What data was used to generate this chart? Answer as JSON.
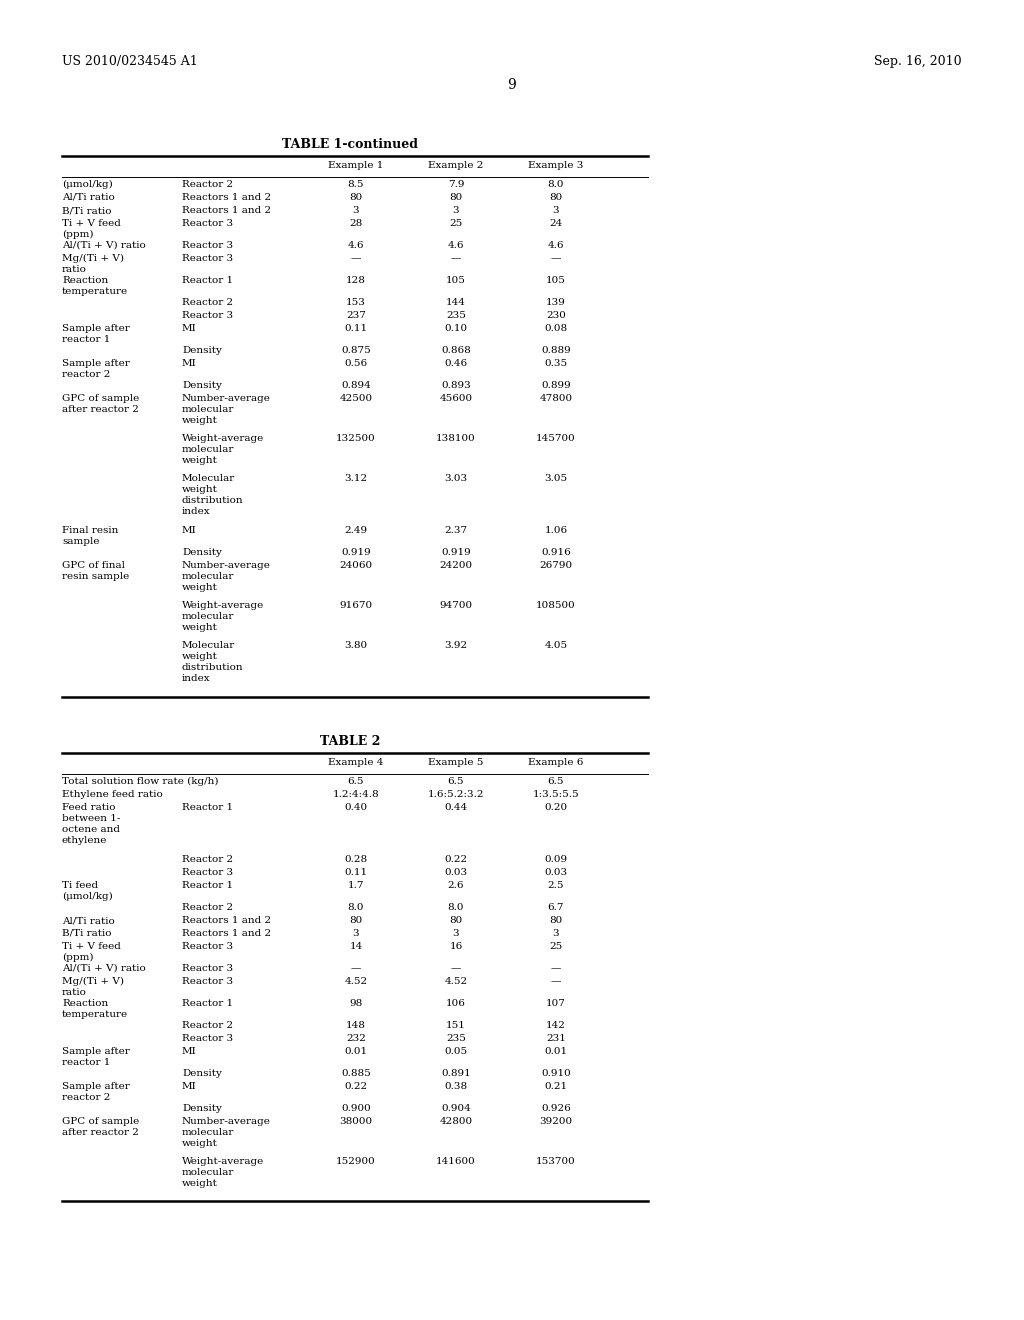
{
  "header_left": "US 2010/0234545 A1",
  "header_right": "Sep. 16, 2010",
  "page_number": "9",
  "table1_title": "TABLE 1-continued",
  "table1_rows": [
    [
      "(μmol/kg)",
      "Reactor 2",
      "8.5",
      "7.9",
      "8.0"
    ],
    [
      "Al/Ti ratio",
      "Reactors 1 and 2",
      "80",
      "80",
      "80"
    ],
    [
      "B/Ti ratio",
      "Reactors 1 and 2",
      "3",
      "3",
      "3"
    ],
    [
      "Ti + V feed\n(ppm)",
      "Reactor 3",
      "28",
      "25",
      "24"
    ],
    [
      "Al/(Ti + V) ratio",
      "Reactor 3",
      "4.6",
      "4.6",
      "4.6"
    ],
    [
      "Mg/(Ti + V)\nratio",
      "Reactor 3",
      "—",
      "—",
      "—"
    ],
    [
      "Reaction\ntemperature",
      "Reactor 1",
      "128",
      "105",
      "105"
    ],
    [
      "",
      "Reactor 2",
      "153",
      "144",
      "139"
    ],
    [
      "",
      "Reactor 3",
      "237",
      "235",
      "230"
    ],
    [
      "Sample after\nreactor 1",
      "MI",
      "0.11",
      "0.10",
      "0.08"
    ],
    [
      "",
      "Density",
      "0.875",
      "0.868",
      "0.889"
    ],
    [
      "Sample after\nreactor 2",
      "MI",
      "0.56",
      "0.46",
      "0.35"
    ],
    [
      "",
      "Density",
      "0.894",
      "0.893",
      "0.899"
    ],
    [
      "GPC of sample\nafter reactor 2",
      "Number-average\nmolecular\nweight",
      "42500",
      "45600",
      "47800"
    ],
    [
      "",
      "Weight-average\nmolecular\nweight",
      "132500",
      "138100",
      "145700"
    ],
    [
      "",
      "Molecular\nweight\ndistribution\nindex",
      "3.12",
      "3.03",
      "3.05"
    ],
    [
      "Final resin\nsample",
      "MI",
      "2.49",
      "2.37",
      "1.06"
    ],
    [
      "",
      "Density",
      "0.919",
      "0.919",
      "0.916"
    ],
    [
      "GPC of final\nresin sample",
      "Number-average\nmolecular\nweight",
      "24060",
      "24200",
      "26790"
    ],
    [
      "",
      "Weight-average\nmolecular\nweight",
      "91670",
      "94700",
      "108500"
    ],
    [
      "",
      "Molecular\nweight\ndistribution\nindex",
      "3.80",
      "3.92",
      "4.05"
    ]
  ],
  "table1_row_heights": [
    13,
    13,
    13,
    22,
    13,
    22,
    22,
    13,
    13,
    22,
    13,
    22,
    13,
    40,
    40,
    52,
    22,
    13,
    40,
    40,
    52
  ],
  "table2_title": "TABLE 2",
  "table2_rows": [
    [
      "Total solution flow rate (kg/h)",
      "",
      "6.5",
      "6.5",
      "6.5"
    ],
    [
      "Ethylene feed ratio",
      "",
      "1.2:4:4.8",
      "1.6:5.2:3.2",
      "1:3.5:5.5"
    ],
    [
      "Feed ratio\nbetween 1-\noctene and\nethylene",
      "Reactor 1",
      "0.40",
      "0.44",
      "0.20"
    ],
    [
      "",
      "Reactor 2",
      "0.28",
      "0.22",
      "0.09"
    ],
    [
      "",
      "Reactor 3",
      "0.11",
      "0.03",
      "0.03"
    ],
    [
      "Ti feed\n(μmol/kg)",
      "Reactor 1",
      "1.7",
      "2.6",
      "2.5"
    ],
    [
      "",
      "Reactor 2",
      "8.0",
      "8.0",
      "6.7"
    ],
    [
      "Al/Ti ratio",
      "Reactors 1 and 2",
      "80",
      "80",
      "80"
    ],
    [
      "B/Ti ratio",
      "Reactors 1 and 2",
      "3",
      "3",
      "3"
    ],
    [
      "Ti + V feed\n(ppm)",
      "Reactor 3",
      "14",
      "16",
      "25"
    ],
    [
      "Al/(Ti + V) ratio",
      "Reactor 3",
      "—",
      "—",
      "—"
    ],
    [
      "Mg/(Ti + V)\nratio",
      "Reactor 3",
      "4.52",
      "4.52",
      "—"
    ],
    [
      "Reaction\ntemperature",
      "Reactor 1",
      "98",
      "106",
      "107"
    ],
    [
      "",
      "Reactor 2",
      "148",
      "151",
      "142"
    ],
    [
      "",
      "Reactor 3",
      "232",
      "235",
      "231"
    ],
    [
      "Sample after\nreactor 1",
      "MI",
      "0.01",
      "0.05",
      "0.01"
    ],
    [
      "",
      "Density",
      "0.885",
      "0.891",
      "0.910"
    ],
    [
      "Sample after\nreactor 2",
      "MI",
      "0.22",
      "0.38",
      "0.21"
    ],
    [
      "",
      "Density",
      "0.900",
      "0.904",
      "0.926"
    ],
    [
      "GPC of sample\nafter reactor 2",
      "Number-average\nmolecular\nweight",
      "38000",
      "42800",
      "39200"
    ],
    [
      "",
      "Weight-average\nmolecular\nweight",
      "152900",
      "141600",
      "153700"
    ]
  ],
  "table2_row_heights": [
    13,
    13,
    52,
    13,
    13,
    22,
    13,
    13,
    13,
    22,
    13,
    22,
    22,
    13,
    13,
    22,
    13,
    22,
    13,
    40,
    40
  ],
  "bg_color": "#ffffff",
  "text_color": "#000000",
  "font_size": 7.5
}
